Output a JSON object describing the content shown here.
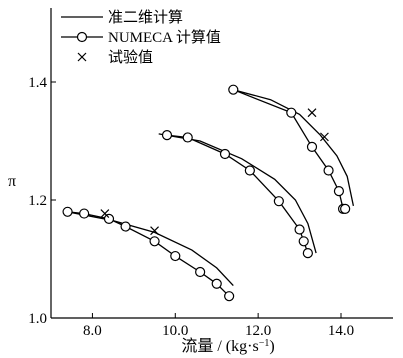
{
  "chart_data": {
    "type": "line",
    "xlabel": "流量 / (kg·s",
    "xlabel_exp": "−1",
    "xlabel_end": ")",
    "ylabel": "π",
    "xlim": [
      7.0,
      15.5
    ],
    "ylim": [
      1.0,
      1.55
    ],
    "x_ticks": [
      8.0,
      10.0,
      12.0,
      14.0
    ],
    "x_tick_labels": [
      "8.0",
      "10.0",
      "12.0",
      "14.0"
    ],
    "y_ticks": [
      1.0,
      1.2,
      1.4
    ],
    "y_tick_labels": [
      "1.0",
      "1.2",
      "1.4"
    ],
    "legend_position": "top-left",
    "grid": false,
    "legend": [
      {
        "label": "准二维计算",
        "marker": "line"
      },
      {
        "label": "NUMECA 计算值",
        "marker": "circle-line"
      },
      {
        "label": "试验值",
        "marker": "cross"
      }
    ],
    "series": [
      {
        "name": "准二维计算",
        "style": "line",
        "curves": [
          {
            "x": [
              7.4,
              8.5,
              9.5,
              10.4,
              11.0,
              11.4
            ],
            "y": [
              1.18,
              1.165,
              1.145,
              1.115,
              1.085,
              1.055
            ]
          },
          {
            "x": [
              9.6,
              10.6,
              11.6,
              12.4,
              12.9,
              13.2,
              13.4
            ],
            "y": [
              1.312,
              1.3,
              1.27,
              1.235,
              1.2,
              1.16,
              1.11
            ]
          },
          {
            "x": [
              11.4,
              12.3,
              13.0,
              13.5,
              13.9,
              14.15,
              14.3
            ],
            "y": [
              1.387,
              1.37,
              1.345,
              1.31,
              1.275,
              1.24,
              1.19
            ]
          }
        ]
      },
      {
        "name": "NUMECA 计算值",
        "style": "circle-line",
        "curves": [
          {
            "x": [
              7.4,
              7.8,
              8.4,
              8.8,
              9.5,
              10.0,
              10.6,
              11.0,
              11.3
            ],
            "y": [
              1.18,
              1.177,
              1.168,
              1.155,
              1.13,
              1.105,
              1.078,
              1.058,
              1.037
            ]
          },
          {
            "x": [
              9.8,
              10.3,
              11.2,
              11.8,
              12.5,
              13.0,
              13.1,
              13.2
            ],
            "y": [
              1.31,
              1.306,
              1.278,
              1.25,
              1.198,
              1.15,
              1.13,
              1.11
            ]
          },
          {
            "x": [
              11.4,
              12.8,
              13.3,
              13.7,
              13.95,
              14.05,
              14.1
            ],
            "y": [
              1.387,
              1.348,
              1.29,
              1.25,
              1.215,
              1.185,
              1.185
            ]
          }
        ]
      },
      {
        "name": "试验值",
        "style": "cross",
        "curves": [
          {
            "x": [
              8.3,
              9.5
            ],
            "y": [
              1.177,
              1.148
            ]
          },
          {
            "x": [
              13.3,
              13.6
            ],
            "y": [
              1.348,
              1.307
            ]
          }
        ]
      }
    ]
  }
}
